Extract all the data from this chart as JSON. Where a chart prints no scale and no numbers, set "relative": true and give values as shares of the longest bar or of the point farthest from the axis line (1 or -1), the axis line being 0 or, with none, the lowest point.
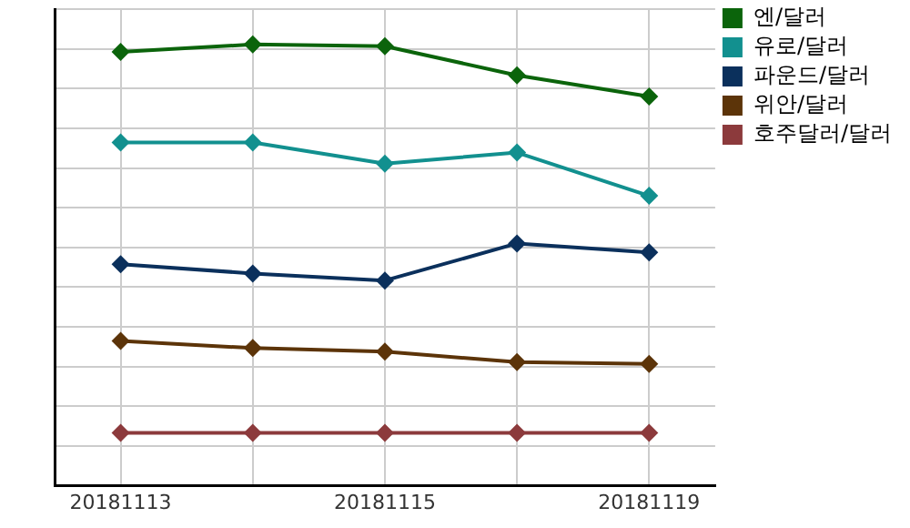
{
  "chart_data": {
    "type": "line",
    "relative": true,
    "categories": [
      "20181113",
      null,
      "20181115",
      null,
      "20181119"
    ],
    "series": [
      {
        "name": "엔/달러",
        "color": "#0b640b",
        "values": [
          0.983,
          1,
          0.996,
          0.93,
          0.882
        ]
      },
      {
        "name": "유로/달러",
        "color": "#12908f",
        "values": [
          0.778,
          0.778,
          0.73,
          0.755,
          0.657
        ]
      },
      {
        "name": "파운드/달러",
        "color": "#0b305c",
        "values": [
          0.502,
          0.481,
          0.465,
          0.549,
          0.529
        ]
      },
      {
        "name": "위안/달러",
        "color": "#5c3409",
        "values": [
          0.328,
          0.312,
          0.304,
          0.28,
          0.276
        ]
      },
      {
        "name": "호주달러/달러",
        "color": "#8c3a3c",
        "values": [
          0.12,
          0.12,
          0.12,
          0.12,
          0.12
        ]
      }
    ],
    "grid": true,
    "legend": "top right",
    "marker": "diamond"
  }
}
